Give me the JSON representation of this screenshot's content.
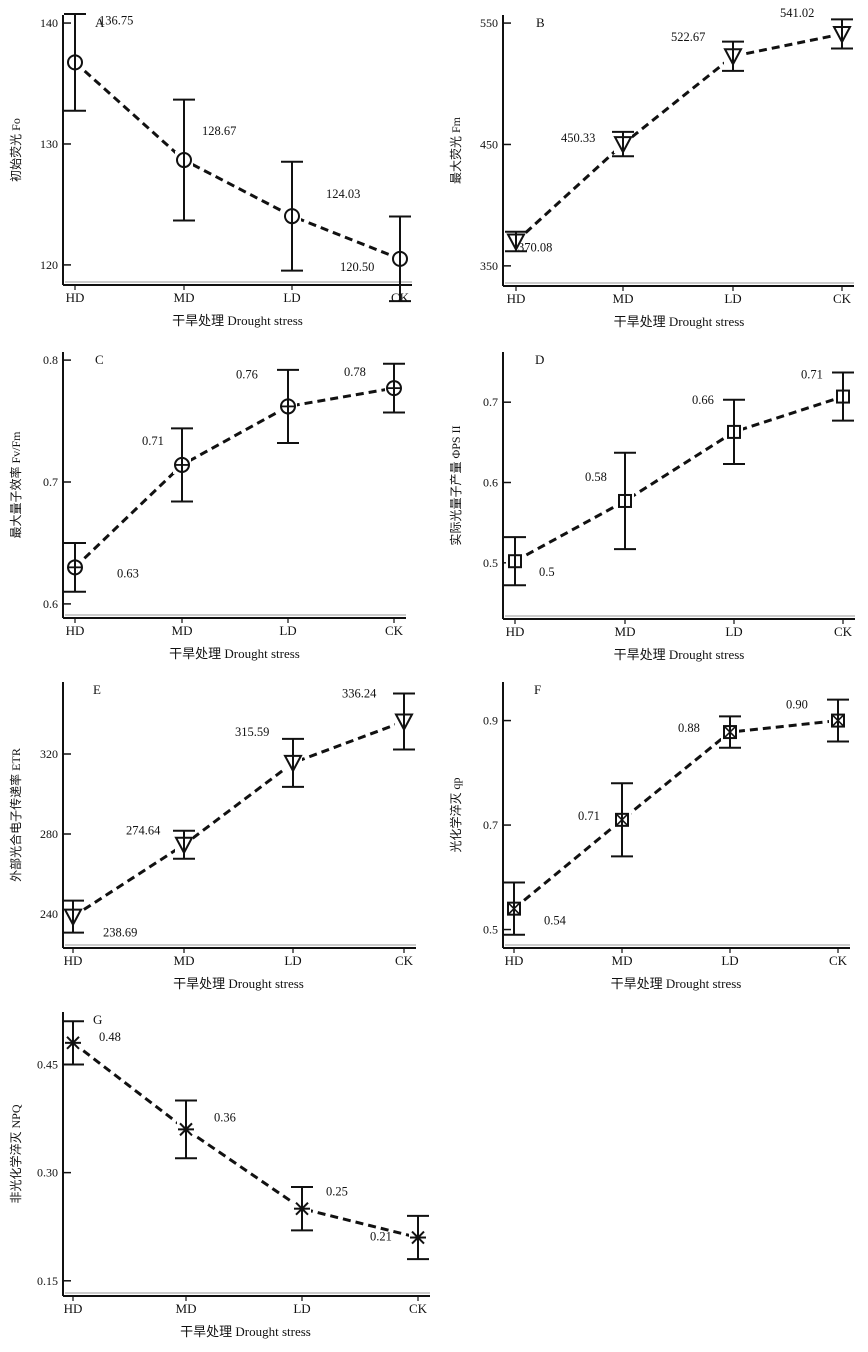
{
  "chart_data": [
    {
      "panel": "A",
      "type": "line",
      "ylabel": "初始荧光 Fo",
      "xlabel": "干旱处理 Drought stress",
      "categories": [
        "HD",
        "MD",
        "LD",
        "CK"
      ],
      "values": [
        136.75,
        128.67,
        124.03,
        120.5
      ],
      "value_labels": [
        "136.75",
        "128.67",
        "124.03",
        "120.50"
      ],
      "errors": [
        4.0,
        5.0,
        4.5,
        3.5
      ],
      "marker": "circle",
      "yticks": [
        {
          "v": 120,
          "label": "120"
        },
        {
          "v": 130,
          "label": "130"
        },
        {
          "v": 140,
          "label": "140"
        }
      ],
      "ylim": [
        119,
        140.5
      ]
    },
    {
      "panel": "B",
      "type": "line",
      "ylabel": "最大荧光 Fm",
      "xlabel": "干旱处理 Drought stress",
      "categories": [
        "HD",
        "MD",
        "LD",
        "CK"
      ],
      "values": [
        370.08,
        450.33,
        522.67,
        541.02
      ],
      "value_labels": [
        "370.08",
        "450.33",
        "522.67",
        "541.02"
      ],
      "errors": [
        8,
        10,
        12,
        12
      ],
      "marker": "triangle-down",
      "yticks": [
        {
          "v": 350,
          "label": "350"
        },
        {
          "v": 450,
          "label": "450"
        },
        {
          "v": 550,
          "label": "550"
        }
      ],
      "ylim": [
        340,
        555
      ]
    },
    {
      "panel": "C",
      "type": "line",
      "ylabel": "最大量子效率 Fv/Fm",
      "xlabel": "干旱处理 Drought stress",
      "categories": [
        "HD",
        "MD",
        "LD",
        "CK"
      ],
      "values": [
        0.63,
        0.714,
        0.762,
        0.777
      ],
      "value_labels": [
        "0.63",
        "0.71",
        "0.76",
        "0.78"
      ],
      "errors": [
        0.02,
        0.03,
        0.03,
        0.02
      ],
      "marker": "circle-plus",
      "yticks": [
        {
          "v": 0.6,
          "label": "0.6"
        },
        {
          "v": 0.7,
          "label": "0.7"
        },
        {
          "v": 0.8,
          "label": "0.8"
        }
      ],
      "ylim": [
        0.595,
        0.805
      ]
    },
    {
      "panel": "D",
      "type": "line",
      "ylabel": "实际光量子产量 ΦPS II",
      "xlabel": "干旱处理 Drought stress",
      "categories": [
        "HD",
        "MD",
        "LD",
        "CK"
      ],
      "values": [
        0.502,
        0.577,
        0.663,
        0.707
      ],
      "value_labels": [
        "0.5",
        "0.58",
        "0.66",
        "0.71"
      ],
      "errors": [
        0.03,
        0.06,
        0.04,
        0.03
      ],
      "marker": "square",
      "yticks": [
        {
          "v": 0.5,
          "label": "0.5"
        },
        {
          "v": 0.6,
          "label": "0.6"
        },
        {
          "v": 0.7,
          "label": "0.7"
        }
      ],
      "ylim": [
        0.44,
        0.76
      ]
    },
    {
      "panel": "E",
      "type": "line",
      "ylabel": "外部光合电子传递率 ETR",
      "xlabel": "干旱处理 Drought stress",
      "categories": [
        "HD",
        "MD",
        "LD",
        "CK"
      ],
      "values": [
        238.69,
        274.64,
        315.59,
        336.24
      ],
      "value_labels": [
        "238.69",
        "274.64",
        "315.59",
        "336.24"
      ],
      "errors": [
        8,
        7,
        12,
        14
      ],
      "marker": "triangle-down",
      "yticks": [
        {
          "v": 240,
          "label": "240"
        },
        {
          "v": 280,
          "label": "280"
        },
        {
          "v": 320,
          "label": "320"
        }
      ],
      "ylim": [
        227,
        355
      ]
    },
    {
      "panel": "F",
      "type": "line",
      "ylabel": "光化学淬灭 qp",
      "xlabel": "干旱处理 Drought stress",
      "categories": [
        "HD",
        "MD",
        "LD",
        "CK"
      ],
      "values": [
        0.54,
        0.71,
        0.878,
        0.9
      ],
      "value_labels": [
        "0.54",
        "0.71",
        "0.88",
        "0.90"
      ],
      "errors": [
        0.05,
        0.07,
        0.03,
        0.04
      ],
      "marker": "square-x",
      "yticks": [
        {
          "v": 0.5,
          "label": "0.5"
        },
        {
          "v": 0.7,
          "label": "0.7"
        },
        {
          "v": 0.9,
          "label": "0.9"
        }
      ],
      "ylim": [
        0.48,
        0.97
      ]
    },
    {
      "panel": "G",
      "type": "line",
      "ylabel": "非光化学淬灭 NPQ",
      "xlabel": "干旱处理 Drought stress",
      "categories": [
        "HD",
        "MD",
        "LD",
        "CK"
      ],
      "values": [
        0.48,
        0.36,
        0.25,
        0.21
      ],
      "value_labels": [
        "0.48",
        "0.36",
        "0.25",
        "0.21"
      ],
      "errors": [
        0.03,
        0.04,
        0.03,
        0.03
      ],
      "marker": "asterisk",
      "yticks": [
        {
          "v": 0.15,
          "label": "0.15"
        },
        {
          "v": 0.3,
          "label": "0.30"
        },
        {
          "v": 0.45,
          "label": "0.45"
        }
      ],
      "ylim": [
        0.14,
        0.52
      ]
    }
  ]
}
